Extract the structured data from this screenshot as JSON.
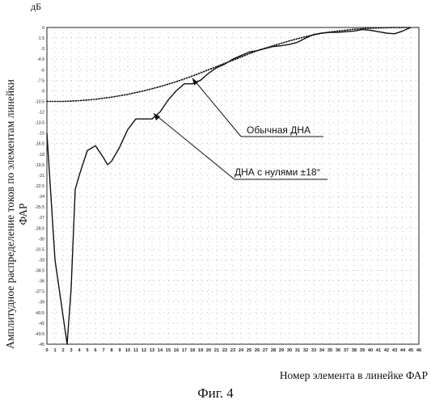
{
  "figure": {
    "unit_label": "дБ",
    "ylabel": "Амплитудное распределение токов по элементам линейки ФАР",
    "xlabel": "Номер элемента в линейке ФАР",
    "caption": "Фиг. 4"
  },
  "chart_data": {
    "type": "line",
    "xlim": [
      0,
      46
    ],
    "ylim": [
      -45,
      0
    ],
    "xticks": [
      0,
      1,
      2,
      3,
      4,
      5,
      6,
      7,
      8,
      9,
      10,
      11,
      12,
      13,
      14,
      15,
      16,
      17,
      18,
      19,
      20,
      21,
      22,
      23,
      24,
      25,
      26,
      27,
      28,
      29,
      30,
      31,
      32,
      33,
      34,
      35,
      36,
      37,
      38,
      39,
      40,
      41,
      42,
      43,
      44,
      45,
      46
    ],
    "ytick_labels": [
      "0",
      "-1.5",
      "-3",
      "-4.5",
      "-6",
      "-7.5",
      "-9",
      "-10.5",
      "-12",
      "-13.5",
      "-15",
      "-16.5",
      "-18",
      "-19.5",
      "-21",
      "-22.5",
      "-24",
      "-25.5",
      "-27",
      "-28.5",
      "-30",
      "-31.5",
      "-33",
      "-34.5",
      "-36",
      "-37.5",
      "-39",
      "-40.5",
      "-42",
      "-43.5",
      "-45"
    ],
    "grid": "dotted",
    "series": [
      {
        "name": "Обычная ДНА",
        "style": "dotted",
        "x": [
          0,
          2,
          4,
          6,
          8,
          10,
          12,
          14,
          16,
          18,
          20,
          22,
          24,
          26,
          28,
          30,
          32,
          34,
          36,
          38,
          40,
          42,
          44,
          45
        ],
        "y": [
          -10.5,
          -10.5,
          -10.4,
          -10.2,
          -9.9,
          -9.5,
          -9.0,
          -8.4,
          -7.7,
          -6.9,
          -6.0,
          -5.1,
          -4.2,
          -3.3,
          -2.6,
          -1.9,
          -1.3,
          -0.8,
          -0.5,
          -0.25,
          -0.1,
          -0.03,
          0,
          0
        ]
      },
      {
        "name": "ДНА с нулями ±18°",
        "style": "solid",
        "x": [
          0,
          1,
          2,
          2.5,
          3,
          3.5,
          4,
          5,
          6,
          7,
          7.5,
          8,
          9,
          10,
          11,
          12,
          13,
          14,
          15,
          16,
          17,
          18,
          19,
          20,
          21,
          22,
          23,
          24,
          25,
          26,
          27,
          28,
          29,
          30,
          31,
          32,
          33,
          34,
          35,
          36,
          37,
          38,
          39,
          40,
          41,
          42,
          43,
          44,
          45
        ],
        "y": [
          -15,
          -33,
          -41,
          -45,
          -37,
          -23,
          -21,
          -17.5,
          -16.8,
          -18.5,
          -19.5,
          -19,
          -17,
          -14.5,
          -13,
          -13,
          -13,
          -12,
          -10.3,
          -9,
          -8,
          -8,
          -7.5,
          -6.5,
          -5.7,
          -5.2,
          -4.5,
          -4,
          -3.5,
          -3.3,
          -3.0,
          -2.7,
          -2.6,
          -2.4,
          -2.1,
          -1.5,
          -1.0,
          -0.8,
          -0.7,
          -0.7,
          -0.6,
          -0.5,
          -0.3,
          -0.4,
          -0.6,
          -0.8,
          -0.9,
          -0.5,
          0
        ]
      }
    ],
    "annotations": [
      {
        "text": "Обычная ДНА",
        "points_to_series": 0
      },
      {
        "text": "ДНА с нулями ±18°",
        "points_to_series": 1
      }
    ]
  }
}
